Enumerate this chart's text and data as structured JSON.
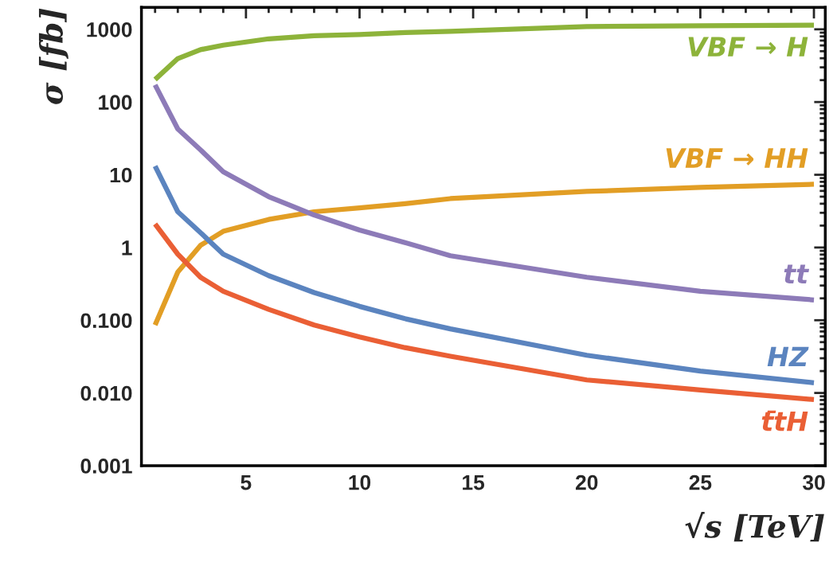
{
  "chart_data": {
    "type": "line",
    "xlabel": "√s [TeV]",
    "ylabel": "σ [fb]",
    "log": "y",
    "xlim": [
      0.4,
      30.5
    ],
    "xticks": [
      5,
      10,
      15,
      20,
      25,
      30
    ],
    "ylim": [
      0.001,
      2000
    ],
    "yticks": [
      {
        "value": 0.001,
        "label": "0.001"
      },
      {
        "value": 0.01,
        "label": "0.010"
      },
      {
        "value": 0.1,
        "label": "0.100"
      },
      1,
      10,
      100,
      1000
    ],
    "grid": false,
    "legend": false,
    "line_style": "solid",
    "marker": "none",
    "x": [
      1,
      2,
      3,
      4,
      6,
      8,
      10,
      12,
      14,
      20,
      25,
      30
    ],
    "series": [
      {
        "name": "VBF → H",
        "color": "#8db33a",
        "values": [
          204,
          396,
          525,
          605,
          740,
          815,
          850,
          900,
          935,
          1090,
          1120,
          1140
        ]
      },
      {
        "name": "VBF → HH",
        "color": "#e29e25",
        "values": [
          0.086,
          0.46,
          1.07,
          1.67,
          2.43,
          3.1,
          3.5,
          4.0,
          4.7,
          5.9,
          6.7,
          7.4
        ]
      },
      {
        "name": "tt",
        "color": "#8d7bb8",
        "values": [
          172,
          42.6,
          22,
          11,
          5.0,
          2.8,
          1.74,
          1.17,
          0.77,
          0.39,
          0.25,
          0.19
        ]
      },
      {
        "name": "HZ",
        "color": "#5b84bf",
        "values": [
          13.2,
          3.1,
          1.6,
          0.81,
          0.41,
          0.24,
          0.155,
          0.105,
          0.076,
          0.033,
          0.02,
          0.0138
        ]
      },
      {
        "name": "t̄tH",
        "color": "#ea5f35",
        "values": [
          2.1,
          0.81,
          0.39,
          0.25,
          0.141,
          0.086,
          0.059,
          0.042,
          0.032,
          0.0151,
          0.011,
          0.0081
        ]
      }
    ]
  }
}
